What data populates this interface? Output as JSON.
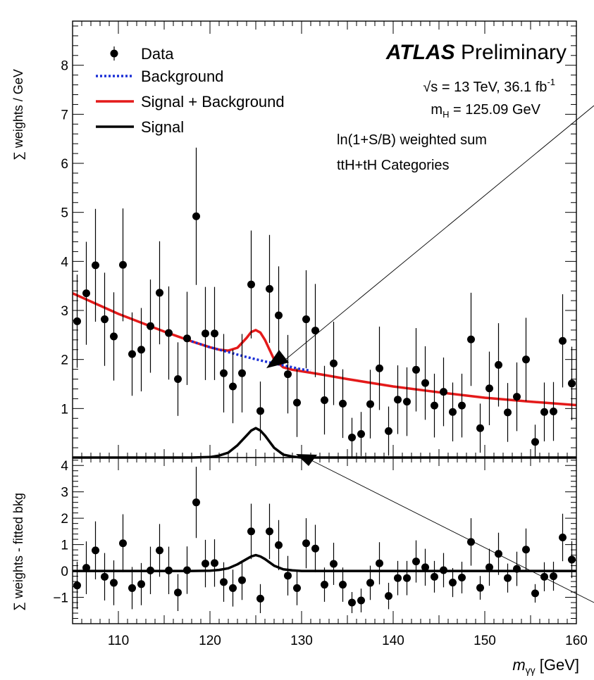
{
  "chart_data": [
    {
      "type": "scatter",
      "panel": "main",
      "ylabel": "∑ weights / GeV",
      "xlim": [
        105,
        160
      ],
      "ylim": [
        0,
        8.9
      ],
      "yticks": [
        1,
        2,
        3,
        4,
        5,
        6,
        7,
        8
      ],
      "legend": {
        "placement": "top-left",
        "entries": [
          {
            "label": "Data",
            "style": "marker"
          },
          {
            "label": "Background",
            "style": "dotted",
            "color": "#1a2fd6"
          },
          {
            "label": "Signal + Background",
            "style": "solid",
            "color": "#e41a1a"
          },
          {
            "label": "Signal",
            "style": "solid",
            "color": "#000000"
          }
        ]
      },
      "annotation": {
        "experiment": "ATLAS",
        "status": "Preliminary",
        "energy_prefix": "√s = 13 TeV, 36.1 fb",
        "lumi_exp": "-1",
        "mass_prefix": "m",
        "mass_sub": "H",
        "mass_suffix": " = 125.09 GeV",
        "line3": "ln(1+S/B) weighted sum",
        "line4": "ttH+tH Categories"
      },
      "series": [
        {
          "name": "Data",
          "x": [
            105.5,
            106.5,
            107.5,
            108.5,
            109.5,
            110.5,
            111.5,
            112.5,
            113.5,
            114.5,
            115.5,
            116.5,
            117.5,
            118.5,
            119.5,
            120.5,
            121.5,
            122.5,
            123.5,
            124.5,
            125.5,
            126.5,
            127.5,
            128.5,
            129.5,
            130.5,
            131.5,
            132.5,
            133.5,
            134.5,
            135.5,
            136.5,
            137.5,
            138.5,
            139.5,
            140.5,
            141.5,
            142.5,
            143.5,
            144.5,
            145.5,
            146.5,
            147.5,
            148.5,
            149.5,
            150.5,
            151.5,
            152.5,
            153.5,
            154.5,
            155.5,
            156.5,
            157.5,
            158.5,
            159.5
          ],
          "y": [
            2.78,
            3.35,
            3.92,
            2.82,
            2.47,
            3.93,
            2.11,
            2.2,
            2.68,
            3.36,
            2.54,
            1.6,
            2.43,
            4.92,
            2.53,
            2.53,
            1.72,
            1.45,
            1.72,
            3.53,
            0.95,
            3.44,
            2.9,
            1.7,
            1.12,
            2.82,
            2.59,
            1.17,
            1.92,
            1.1,
            0.41,
            0.48,
            1.09,
            1.82,
            0.54,
            1.18,
            1.14,
            1.79,
            1.52,
            1.06,
            1.34,
            0.93,
            1.06,
            2.41,
            0.6,
            1.41,
            1.89,
            0.92,
            1.24,
            2.0,
            0.32,
            0.93,
            0.94,
            2.38,
            1.51
          ],
          "yerr": [
            0.95,
            1.05,
            1.15,
            0.95,
            0.9,
            1.15,
            0.85,
            0.85,
            0.95,
            1.05,
            0.95,
            0.75,
            0.95,
            1.4,
            0.95,
            0.95,
            0.8,
            0.75,
            0.8,
            1.1,
            0.6,
            1.1,
            1.0,
            0.8,
            0.7,
            1.0,
            0.95,
            0.7,
            0.85,
            0.7,
            0.4,
            0.45,
            0.7,
            0.85,
            0.5,
            0.7,
            0.7,
            0.85,
            0.75,
            0.65,
            0.7,
            0.6,
            0.65,
            0.95,
            0.5,
            0.75,
            0.85,
            0.6,
            0.7,
            0.85,
            0.35,
            0.6,
            0.6,
            0.95,
            0.75
          ]
        },
        {
          "name": "Signal + Background",
          "x": [
            105,
            110,
            115,
            118,
            120,
            121,
            122,
            123,
            124,
            124.5,
            125,
            125.5,
            126,
            127,
            128,
            129,
            130,
            132,
            135,
            140,
            145,
            150,
            155,
            160
          ],
          "y": [
            3.35,
            2.93,
            2.57,
            2.37,
            2.25,
            2.2,
            2.18,
            2.24,
            2.44,
            2.56,
            2.6,
            2.55,
            2.4,
            2.0,
            1.84,
            1.79,
            1.76,
            1.7,
            1.6,
            1.45,
            1.33,
            1.22,
            1.14,
            1.07
          ]
        },
        {
          "name": "Background",
          "x": [
            118,
            120,
            122,
            124,
            126,
            128,
            130,
            131
          ],
          "y": [
            2.37,
            2.25,
            2.15,
            2.05,
            1.96,
            1.88,
            1.8,
            1.77
          ]
        },
        {
          "name": "Signal",
          "x": [
            105,
            118,
            120,
            121,
            122,
            123,
            124,
            124.5,
            125,
            125.5,
            126,
            127,
            128,
            129,
            130,
            132,
            160
          ],
          "y": [
            0,
            0,
            0.01,
            0.04,
            0.1,
            0.25,
            0.45,
            0.55,
            0.6,
            0.55,
            0.45,
            0.2,
            0.06,
            0.02,
            0,
            0,
            0
          ]
        }
      ]
    },
    {
      "type": "scatter",
      "panel": "residual",
      "ylabel": "∑ weights - fitted bkg",
      "xlabel": "m",
      "xlabel_sub": "γγ",
      "xlabel_unit": " [GeV]",
      "xlim": [
        105,
        160
      ],
      "ylim": [
        -2,
        4.3
      ],
      "yticks": [
        -1,
        0,
        1,
        2,
        3,
        4
      ],
      "xticks": [
        110,
        120,
        130,
        140,
        150,
        160
      ],
      "series": [
        {
          "name": "Data - fitted bkg",
          "x": [
            105.5,
            106.5,
            107.5,
            108.5,
            109.5,
            110.5,
            111.5,
            112.5,
            113.5,
            114.5,
            115.5,
            116.5,
            117.5,
            118.5,
            119.5,
            120.5,
            121.5,
            122.5,
            123.5,
            124.5,
            125.5,
            126.5,
            127.5,
            128.5,
            129.5,
            130.5,
            131.5,
            132.5,
            133.5,
            134.5,
            135.5,
            136.5,
            137.5,
            138.5,
            139.5,
            140.5,
            141.5,
            142.5,
            143.5,
            144.5,
            145.5,
            146.5,
            147.5,
            148.5,
            149.5,
            150.5,
            151.5,
            152.5,
            153.5,
            154.5,
            155.5,
            156.5,
            157.5,
            158.5,
            159.5
          ],
          "y": [
            -0.55,
            0.12,
            0.78,
            -0.22,
            -0.45,
            1.05,
            -0.65,
            -0.5,
            0.02,
            0.78,
            0.02,
            -0.82,
            0.03,
            2.6,
            0.28,
            0.3,
            -0.42,
            -0.65,
            -0.35,
            1.5,
            -1.05,
            1.5,
            0.98,
            -0.18,
            -0.65,
            1.05,
            0.85,
            -0.52,
            0.27,
            -0.52,
            -1.2,
            -1.12,
            -0.45,
            0.29,
            -0.95,
            -0.27,
            -0.27,
            0.36,
            0.14,
            -0.22,
            0.03,
            -0.44,
            -0.25,
            1.1,
            -0.64,
            0.14,
            0.65,
            -0.27,
            0.08,
            0.81,
            -0.85,
            -0.22,
            -0.2,
            1.27,
            0.43
          ],
          "yerr": [
            0.9,
            1.0,
            1.1,
            0.9,
            0.85,
            1.1,
            0.8,
            0.8,
            0.9,
            1.0,
            0.9,
            0.7,
            0.9,
            1.35,
            0.9,
            0.9,
            0.75,
            0.7,
            0.75,
            1.05,
            0.55,
            1.05,
            0.95,
            0.75,
            0.65,
            0.95,
            0.9,
            0.65,
            0.8,
            0.65,
            0.4,
            0.45,
            0.65,
            0.8,
            0.5,
            0.65,
            0.65,
            0.8,
            0.7,
            0.6,
            0.65,
            0.55,
            0.6,
            0.9,
            0.45,
            0.7,
            0.8,
            0.55,
            0.65,
            0.8,
            0.35,
            0.55,
            0.55,
            0.9,
            0.7
          ]
        },
        {
          "name": "Signal",
          "x": [
            105,
            118,
            120,
            121,
            122,
            123,
            124,
            124.5,
            125,
            125.5,
            126,
            127,
            128,
            129,
            130,
            132,
            160
          ],
          "y": [
            0,
            0,
            0.01,
            0.04,
            0.1,
            0.25,
            0.45,
            0.55,
            0.6,
            0.55,
            0.45,
            0.2,
            0.06,
            0.02,
            0,
            0,
            0
          ]
        }
      ]
    }
  ]
}
